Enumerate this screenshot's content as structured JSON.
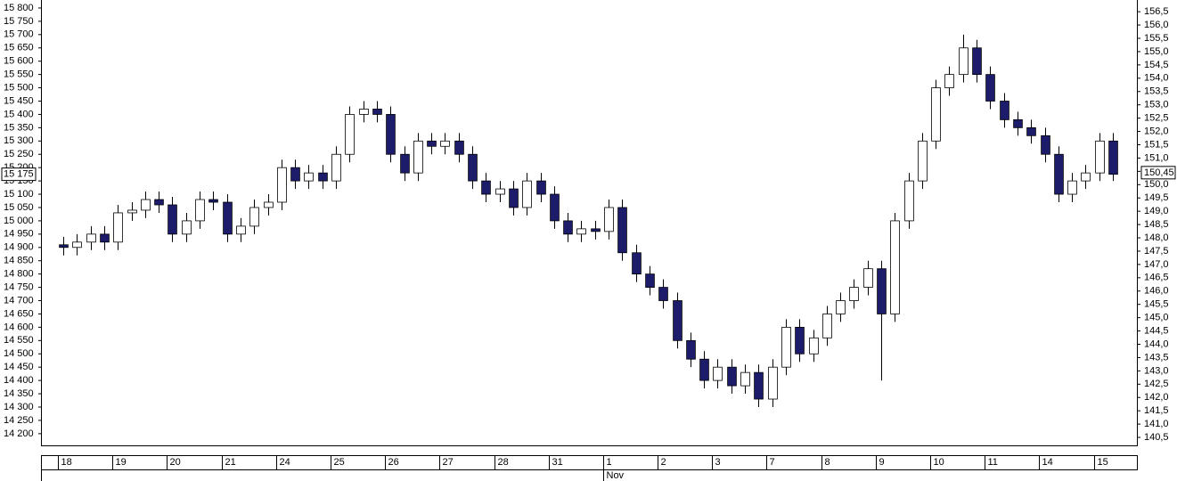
{
  "chart_data": {
    "type": "candlestick",
    "x": [
      0.1,
      0.35,
      0.6,
      0.85,
      1.1,
      1.35,
      1.6,
      1.85,
      2.1,
      2.35,
      2.6,
      2.85,
      3.1,
      3.35,
      3.6,
      3.85,
      4.1,
      4.35,
      4.6,
      4.85,
      5.1,
      5.35,
      5.6,
      5.85,
      6.1,
      6.35,
      6.6,
      6.85,
      7.1,
      7.35,
      7.6,
      7.85,
      8.1,
      8.35,
      8.6,
      8.85,
      9.1,
      9.35,
      9.6,
      9.85,
      10.1,
      10.35,
      10.6,
      10.85,
      11.1,
      11.35,
      11.6,
      11.85,
      12.1,
      12.35,
      12.6,
      12.85,
      13.1,
      13.35,
      13.6,
      13.85,
      14.1,
      14.35,
      14.6,
      14.85,
      15.1,
      15.35,
      15.6,
      15.85,
      16.1,
      16.35,
      16.6,
      16.85,
      17.1,
      17.35,
      17.6,
      17.85,
      18.1,
      18.35,
      18.6,
      18.85,
      19.1,
      19.35
    ],
    "open": [
      14910,
      14900,
      14920,
      14950,
      14920,
      15030,
      15040,
      15080,
      15060,
      14950,
      15000,
      15080,
      15070,
      14950,
      14980,
      15050,
      15070,
      15200,
      15150,
      15180,
      15150,
      15250,
      15400,
      15420,
      15400,
      15250,
      15180,
      15300,
      15280,
      15300,
      15250,
      15150,
      15100,
      15120,
      15050,
      15150,
      15100,
      15000,
      14950,
      14970,
      14960,
      15050,
      14880,
      14800,
      14750,
      14700,
      14550,
      14480,
      14400,
      14450,
      14380,
      14430,
      14330,
      14450,
      14600,
      14500,
      14560,
      14650,
      14700,
      14750,
      14820,
      14650,
      15000,
      15150,
      15300,
      15500,
      15550,
      15650,
      15550,
      15450,
      15380,
      15350,
      15320,
      15250,
      15100,
      15150,
      15180,
      15300
    ],
    "high": [
      14940,
      14950,
      14980,
      14980,
      15060,
      15070,
      15110,
      15110,
      15090,
      15030,
      15110,
      15110,
      15100,
      15010,
      15080,
      15100,
      15230,
      15230,
      15210,
      15210,
      15280,
      15430,
      15450,
      15450,
      15430,
      15280,
      15330,
      15330,
      15330,
      15330,
      15280,
      15180,
      15150,
      15150,
      15180,
      15180,
      15130,
      15030,
      15000,
      15000,
      15080,
      15080,
      14910,
      14830,
      14780,
      14730,
      14580,
      14510,
      14480,
      14480,
      14460,
      14460,
      14480,
      14630,
      14630,
      14590,
      14680,
      14730,
      14780,
      14850,
      14850,
      15030,
      15180,
      15330,
      15530,
      15580,
      15700,
      15680,
      15580,
      15480,
      15410,
      15380,
      15350,
      15280,
      15180,
      15210,
      15330,
      15330
    ],
    "low": [
      14870,
      14870,
      14890,
      14890,
      14890,
      15000,
      15010,
      15030,
      14920,
      14920,
      14970,
      15040,
      14920,
      14920,
      14950,
      15020,
      15040,
      15120,
      15120,
      15120,
      15120,
      15220,
      15370,
      15370,
      15220,
      15150,
      15150,
      15250,
      15250,
      15220,
      15120,
      15070,
      15070,
      15020,
      15020,
      15070,
      14970,
      14920,
      14920,
      14930,
      14930,
      14850,
      14770,
      14720,
      14670,
      14520,
      14450,
      14370,
      14370,
      14350,
      14350,
      14300,
      14300,
      14420,
      14470,
      14470,
      14530,
      14620,
      14670,
      14720,
      14400,
      14620,
      14970,
      15120,
      15270,
      15470,
      15520,
      15520,
      15420,
      15350,
      15320,
      15290,
      15220,
      15070,
      15070,
      15120,
      15150,
      15150
    ],
    "close": [
      14900,
      14920,
      14950,
      14920,
      15030,
      15040,
      15080,
      15060,
      14950,
      15000,
      15080,
      15070,
      14950,
      14980,
      15050,
      15070,
      15200,
      15150,
      15180,
      15150,
      15250,
      15400,
      15420,
      15400,
      15250,
      15180,
      15300,
      15280,
      15300,
      15250,
      15150,
      15100,
      15120,
      15050,
      15150,
      15100,
      15000,
      14950,
      14970,
      14960,
      15050,
      14880,
      14800,
      14750,
      14700,
      14550,
      14480,
      14400,
      14450,
      14380,
      14430,
      14330,
      14450,
      14600,
      14500,
      14560,
      14650,
      14700,
      14750,
      14820,
      14650,
      15000,
      15150,
      15300,
      15500,
      15550,
      15650,
      15550,
      15450,
      15380,
      15350,
      15320,
      15250,
      15100,
      15150,
      15180,
      15300,
      15175
    ],
    "up_color": "#ffffff",
    "down_color": "#1c1c6b",
    "edge_color": "#000000",
    "xlim": [
      -0.31,
      19.79
    ],
    "xticks": [
      {
        "value": 0,
        "label": "18"
      },
      {
        "value": 1,
        "label": "19"
      },
      {
        "value": 2,
        "label": "20"
      },
      {
        "value": 3,
        "label": "21"
      },
      {
        "value": 4,
        "label": "24"
      },
      {
        "value": 5,
        "label": "25"
      },
      {
        "value": 6,
        "label": "26"
      },
      {
        "value": 7,
        "label": "27"
      },
      {
        "value": 8,
        "label": "28"
      },
      {
        "value": 9,
        "label": "31"
      },
      {
        "value": 10,
        "label": "1"
      },
      {
        "value": 11,
        "label": "2"
      },
      {
        "value": 12,
        "label": "3"
      },
      {
        "value": 13,
        "label": "7"
      },
      {
        "value": 14,
        "label": "8"
      },
      {
        "value": 15,
        "label": "9"
      },
      {
        "value": 16,
        "label": "10"
      },
      {
        "value": 17,
        "label": "11"
      },
      {
        "value": 18,
        "label": "14"
      },
      {
        "value": 19,
        "label": "15"
      }
    ],
    "month_ticks": [
      {
        "value": 10,
        "label": "Nov"
      }
    ],
    "ylim": [
      14156,
      15830
    ],
    "yticks": [
      {
        "value": 14200,
        "label": "14 200"
      },
      {
        "value": 14250,
        "label": "14 250"
      },
      {
        "value": 14300,
        "label": "14 300"
      },
      {
        "value": 14350,
        "label": "14 350"
      },
      {
        "value": 14400,
        "label": "14 400"
      },
      {
        "value": 14450,
        "label": "14 450"
      },
      {
        "value": 14500,
        "label": "14 500"
      },
      {
        "value": 14550,
        "label": "14 550"
      },
      {
        "value": 14600,
        "label": "14 600"
      },
      {
        "value": 14650,
        "label": "14 650"
      },
      {
        "value": 14700,
        "label": "14 700"
      },
      {
        "value": 14750,
        "label": "14 750"
      },
      {
        "value": 14800,
        "label": "14 800"
      },
      {
        "value": 14850,
        "label": "14 850"
      },
      {
        "value": 14900,
        "label": "14 900"
      },
      {
        "value": 14950,
        "label": "14 950"
      },
      {
        "value": 15000,
        "label": "15 000"
      },
      {
        "value": 15050,
        "label": "15 050"
      },
      {
        "value": 15100,
        "label": "15 100"
      },
      {
        "value": 15150,
        "label": "15 150"
      },
      {
        "value": 15200,
        "label": "15 200"
      },
      {
        "value": 15250,
        "label": "15 250"
      },
      {
        "value": 15300,
        "label": "15 300"
      },
      {
        "value": 15350,
        "label": "15 350"
      },
      {
        "value": 15400,
        "label": "15 400"
      },
      {
        "value": 15450,
        "label": "15 450"
      },
      {
        "value": 15500,
        "label": "15 500"
      },
      {
        "value": 15550,
        "label": "15 550"
      },
      {
        "value": 15600,
        "label": "15 600"
      },
      {
        "value": 15650,
        "label": "15 650"
      },
      {
        "value": 15700,
        "label": "15 700"
      },
      {
        "value": 15750,
        "label": "15 750"
      },
      {
        "value": 15800,
        "label": "15 800"
      }
    ],
    "y2lim": [
      140.2,
      156.94
    ],
    "y2ticks": [
      {
        "value": 140.5,
        "label": "140,5"
      },
      {
        "value": 141,
        "label": "141,0"
      },
      {
        "value": 141.5,
        "label": "141,5"
      },
      {
        "value": 142,
        "label": "142,0"
      },
      {
        "value": 142.5,
        "label": "142,5"
      },
      {
        "value": 143,
        "label": "143,0"
      },
      {
        "value": 143.5,
        "label": "143,5"
      },
      {
        "value": 144,
        "label": "144,0"
      },
      {
        "value": 144.5,
        "label": "144,5"
      },
      {
        "value": 145,
        "label": "145,0"
      },
      {
        "value": 145.5,
        "label": "145,5"
      },
      {
        "value": 146,
        "label": "146,0"
      },
      {
        "value": 146.5,
        "label": "146,5"
      },
      {
        "value": 147,
        "label": "147,0"
      },
      {
        "value": 147.5,
        "label": "147,5"
      },
      {
        "value": 148,
        "label": "148,0"
      },
      {
        "value": 148.5,
        "label": "148,5"
      },
      {
        "value": 149,
        "label": "149,0"
      },
      {
        "value": 149.5,
        "label": "149,5"
      },
      {
        "value": 150,
        "label": "150,0"
      },
      {
        "value": 150.5,
        "label": "150,5"
      },
      {
        "value": 151,
        "label": "151,0"
      },
      {
        "value": 151.5,
        "label": "151,5"
      },
      {
        "value": 152,
        "label": "152,0"
      },
      {
        "value": 152.5,
        "label": "152,5"
      },
      {
        "value": 153,
        "label": "153,0"
      },
      {
        "value": 153.5,
        "label": "153,5"
      },
      {
        "value": 154,
        "label": "154,0"
      },
      {
        "value": 154.5,
        "label": "154,5"
      },
      {
        "value": 155,
        "label": "155,0"
      },
      {
        "value": 155.5,
        "label": "155,5"
      },
      {
        "value": 156,
        "label": "156,0"
      },
      {
        "value": 156.5,
        "label": "156,5"
      }
    ],
    "last_price": {
      "value": 15175,
      "label": "15 175"
    },
    "last_price_y2": {
      "value": 150.45,
      "label": "150,45"
    }
  }
}
